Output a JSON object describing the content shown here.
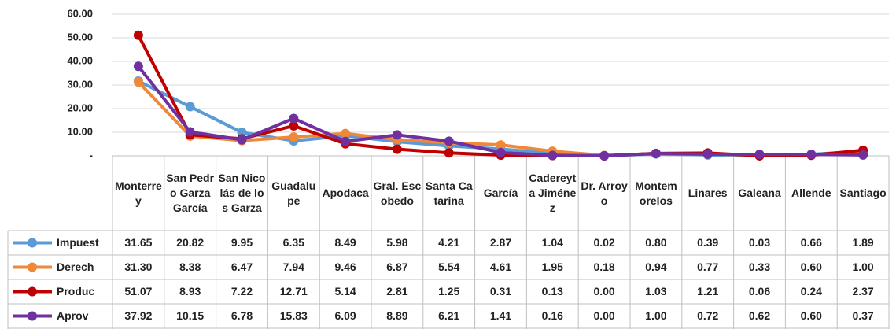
{
  "chart_data": {
    "type": "line",
    "categories": [
      "Monterrey",
      "San Pedro Garza García",
      "San Nicolás de los Garza",
      "Guadalupe",
      "Apodaca",
      "Gral. Escobedo",
      "Santa Catarina",
      "García",
      "Cadereyta Jiménez",
      "Dr. Arroyo",
      "Montemorelos",
      "Linares",
      "Galeana",
      "Allende",
      "Santiago"
    ],
    "series": [
      {
        "name": "Impuest",
        "color": "#5b9bd5",
        "values": [
          31.65,
          20.82,
          9.95,
          6.35,
          8.49,
          5.98,
          4.21,
          2.87,
          1.04,
          0.02,
          0.8,
          0.39,
          0.03,
          0.66,
          1.89
        ],
        "value_labels": [
          "31.65",
          "20.82",
          "9.95",
          "6.35",
          "8.49",
          "5.98",
          "4.21",
          "2.87",
          "1.04",
          "0.02",
          "0.80",
          "0.39",
          "0.03",
          "0.66",
          "1.89"
        ]
      },
      {
        "name": "Derech",
        "color": "#f0883a",
        "values": [
          31.3,
          8.38,
          6.47,
          7.94,
          9.46,
          6.87,
          5.54,
          4.61,
          1.95,
          0.18,
          0.94,
          0.77,
          0.33,
          0.6,
          1.0
        ],
        "value_labels": [
          "31.30",
          "8.38",
          "6.47",
          "7.94",
          "9.46",
          "6.87",
          "5.54",
          "4.61",
          "1.95",
          "0.18",
          "0.94",
          "0.77",
          "0.33",
          "0.60",
          "1.00"
        ]
      },
      {
        "name": "Produc",
        "color": "#c00000",
        "values": [
          51.07,
          8.93,
          7.22,
          12.71,
          5.14,
          2.81,
          1.25,
          0.31,
          0.13,
          0.0,
          1.03,
          1.21,
          0.06,
          0.24,
          2.37
        ],
        "value_labels": [
          "51.07",
          "8.93",
          "7.22",
          "12.71",
          "5.14",
          "2.81",
          "1.25",
          "0.31",
          "0.13",
          "0.00",
          "1.03",
          "1.21",
          "0.06",
          "0.24",
          "2.37"
        ]
      },
      {
        "name": "Aprov",
        "color": "#7030a0",
        "values": [
          37.92,
          10.15,
          6.78,
          15.83,
          6.09,
          8.89,
          6.21,
          1.41,
          0.16,
          0.0,
          1.0,
          0.72,
          0.62,
          0.6,
          0.37
        ],
        "value_labels": [
          "37.92",
          "10.15",
          "6.78",
          "15.83",
          "6.09",
          "8.89",
          "6.21",
          "1.41",
          "0.16",
          "0.00",
          "1.00",
          "0.72",
          "0.62",
          "0.60",
          "0.37"
        ]
      }
    ],
    "ylim": [
      0,
      60
    ],
    "yticks": [
      {
        "value": 0,
        "label": "-"
      },
      {
        "value": 10,
        "label": "10.00"
      },
      {
        "value": 20,
        "label": "20.00"
      },
      {
        "value": 30,
        "label": "30.00"
      },
      {
        "value": 40,
        "label": "40.00"
      },
      {
        "value": 50,
        "label": "50.00"
      },
      {
        "value": 60,
        "label": "60.00"
      }
    ],
    "grid": true
  }
}
